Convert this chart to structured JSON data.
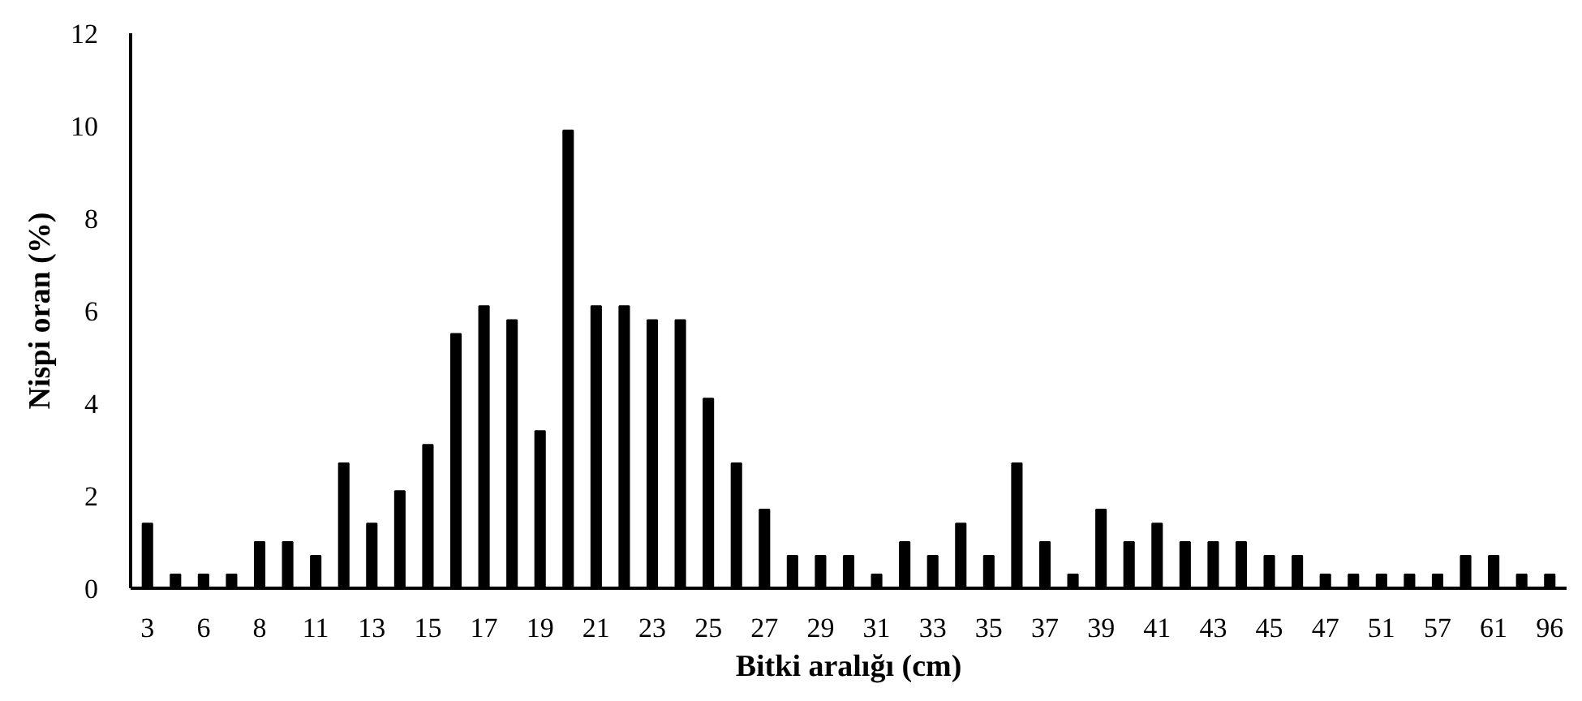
{
  "chart_data": {
    "type": "bar",
    "xlabel": "Bitki aralığı (cm)",
    "ylabel": "Nispi oran (%)",
    "categories": [
      "3",
      null,
      "6",
      null,
      "8",
      null,
      "11",
      null,
      "13",
      null,
      "15",
      null,
      "17",
      null,
      "19",
      null,
      "21",
      null,
      "23",
      null,
      "25",
      null,
      "27",
      null,
      "29",
      null,
      "31",
      null,
      "33",
      null,
      "35",
      null,
      "37",
      null,
      "39",
      null,
      "41",
      null,
      "43",
      null,
      "45",
      null,
      "47",
      null,
      "51",
      null,
      "57",
      null,
      "61",
      null,
      "96"
    ],
    "values": [
      1.4,
      0.3,
      0.3,
      0.3,
      1.0,
      1.0,
      0.7,
      2.7,
      1.4,
      2.1,
      3.1,
      5.5,
      6.1,
      5.8,
      3.4,
      9.9,
      6.1,
      6.1,
      5.8,
      5.8,
      4.1,
      2.7,
      1.7,
      0.7,
      0.7,
      0.7,
      0.3,
      1.0,
      0.7,
      1.4,
      0.7,
      2.7,
      1.0,
      0.3,
      1.7,
      1.0,
      1.4,
      1.0,
      1.0,
      1.0,
      0.7,
      0.7,
      0.3,
      0.3,
      0.3,
      0.3,
      0.3,
      0.7,
      0.7,
      0.3,
      0.3
    ],
    "color": "#000000",
    "ylim": [
      0,
      12
    ],
    "yticks": [
      0,
      2,
      4,
      6,
      8,
      10,
      12
    ],
    "grid": false
  }
}
